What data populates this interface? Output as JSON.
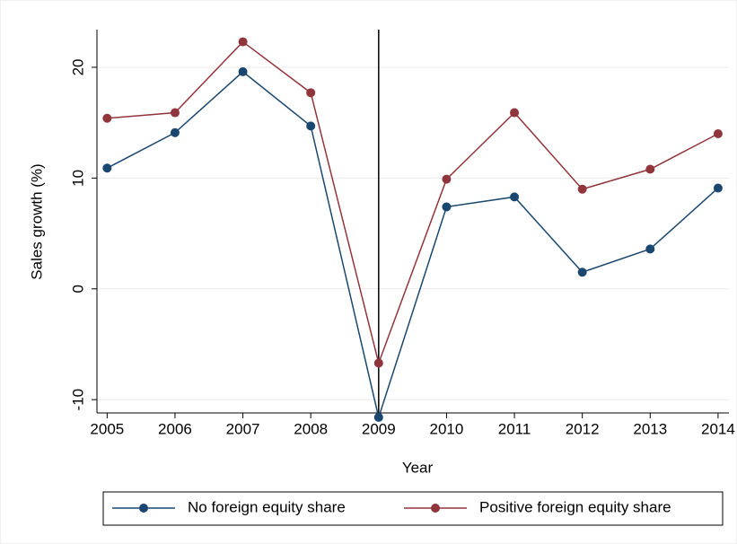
{
  "chart_data": {
    "type": "line",
    "x": [
      2005,
      2006,
      2007,
      2008,
      2009,
      2010,
      2011,
      2012,
      2013,
      2014
    ],
    "series": [
      {
        "name": "No foreign equity share",
        "color": "#1a476f",
        "values": [
          10.9,
          14.1,
          19.6,
          14.7,
          -11.6,
          7.4,
          8.3,
          1.5,
          3.6,
          9.1
        ]
      },
      {
        "name": "Positive foreign equity share",
        "color": "#90353b",
        "values": [
          15.4,
          15.9,
          22.3,
          17.7,
          -6.7,
          9.9,
          15.9,
          9.0,
          10.8,
          14.0
        ]
      }
    ],
    "xlabel": "Year",
    "ylabel": "Sales growth (%)",
    "xlim": [
      2004.85,
      2014.16
    ],
    "ylim": [
      -11.2,
      23.4
    ],
    "xticks": [
      2005,
      2006,
      2007,
      2008,
      2009,
      2010,
      2011,
      2012,
      2013,
      2014
    ],
    "yticks": [
      -10,
      0,
      10,
      20
    ],
    "xline": 2009,
    "grid": true,
    "legend": "bottom"
  }
}
